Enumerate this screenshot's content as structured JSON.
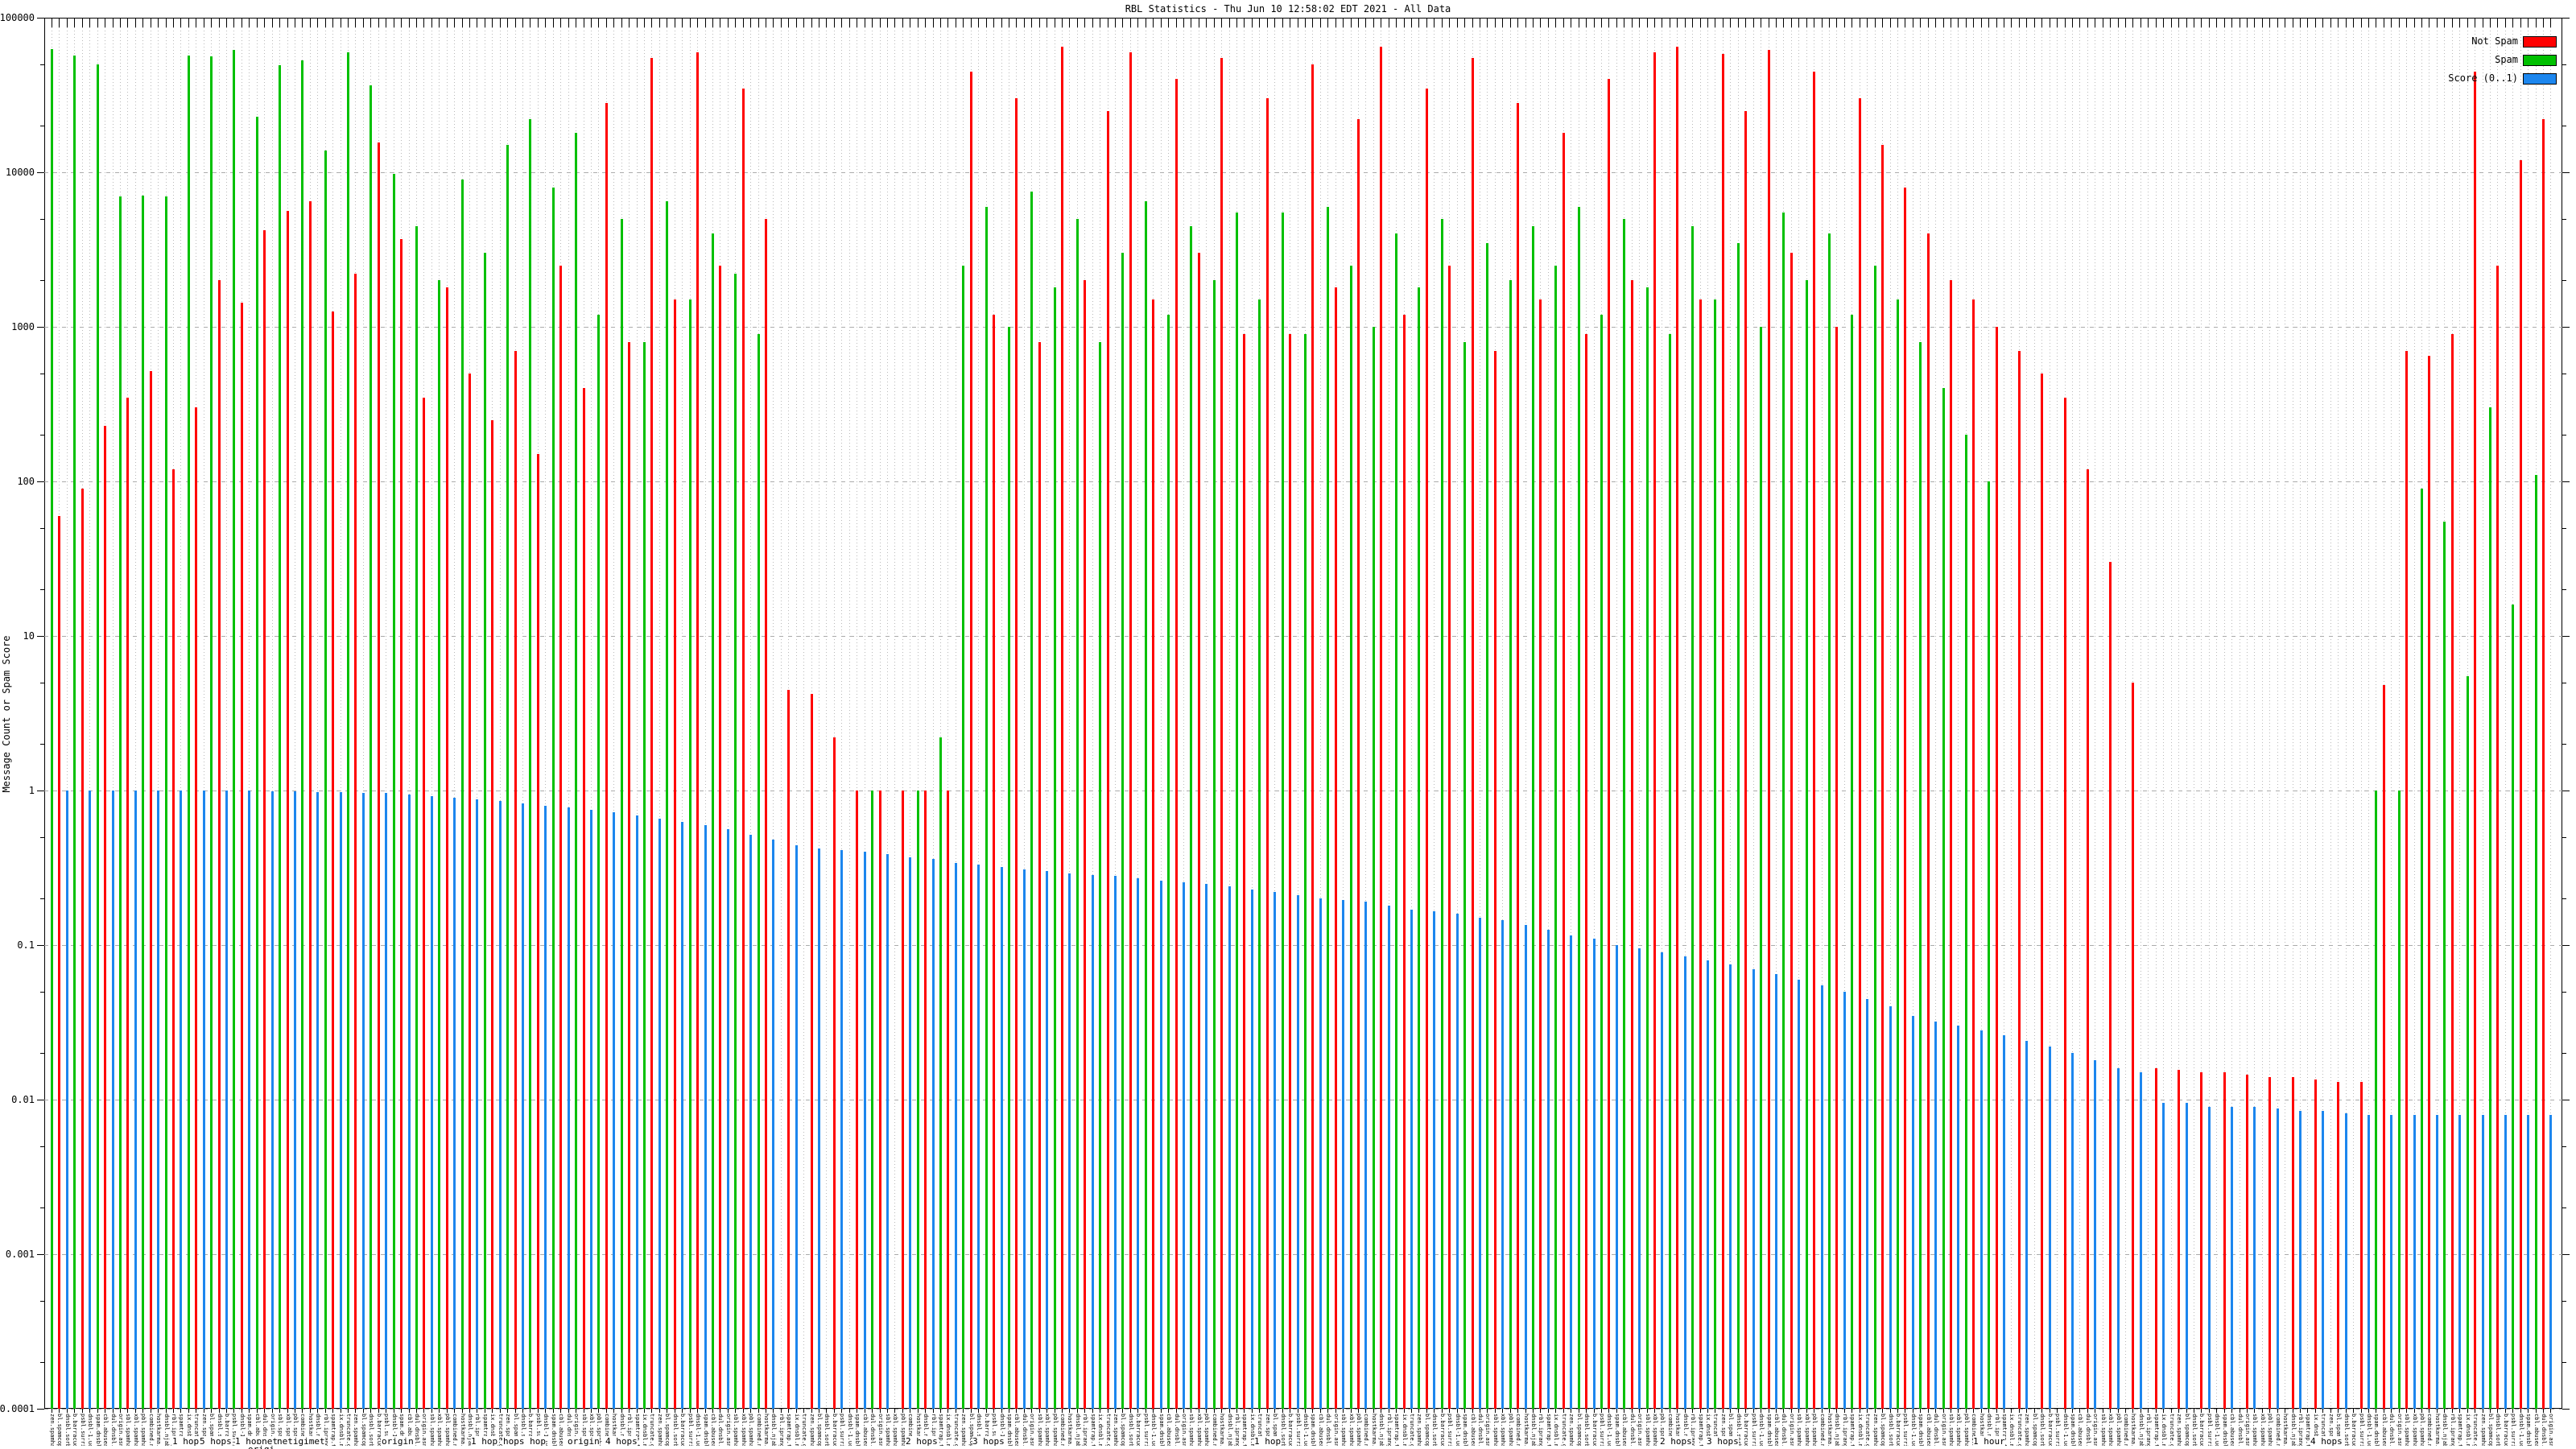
{
  "title": "RBL Statistics - Thu Jun 10 12:58:02 EDT 2021 - All Data",
  "y_axis": {
    "label": "Message Count or Spam Score",
    "tick_labels": [
      "100000",
      "10000",
      "1000",
      "100",
      "10",
      "1",
      "0.1",
      "0.01",
      "0.001",
      "0.0001"
    ],
    "tick_values": [
      100000,
      10000,
      1000,
      100,
      10,
      1,
      0.1,
      0.01,
      0.001,
      0.0001
    ]
  },
  "legend": {
    "items": [
      {
        "label": "Not Spam",
        "color": "#ff0000"
      },
      {
        "label": "Spam",
        "color": "#00c000"
      },
      {
        "label": "Score (0..1)",
        "color": "#1c86ee"
      }
    ]
  },
  "colors": {
    "not_spam": "#ff0000",
    "spam": "#00c000",
    "score": "#1c86ee",
    "grid_dotted": "#b9b9b9",
    "grid_dashed": "#ababab",
    "axis": "#000000"
  },
  "chart_data": {
    "type": "bar",
    "scale": "log",
    "ylim": [
      0.0001,
      100000
    ],
    "grid": true,
    "legend_position": "top-right-inside",
    "n_groups": 110,
    "categories_note": "~110 RBL entries; rotated x labels overlap and are illegible",
    "series": [
      {
        "name": "Spam",
        "color": "#00c000",
        "values": [
          63000,
          57000,
          50000,
          7000,
          7100,
          7000,
          57000,
          56000,
          62000,
          23000,
          49000,
          53000,
          13800,
          60000,
          36500,
          9800,
          4500,
          2000,
          9000,
          3000,
          15000,
          22000,
          8000,
          18000,
          1200,
          5000,
          800,
          6500,
          1500,
          4000,
          2200,
          900,
          0,
          0,
          0,
          0,
          1.0,
          0,
          1.0,
          2.2,
          2500,
          6000,
          1000,
          7500,
          1800,
          5000,
          800,
          3000,
          6500,
          1200,
          4500,
          2000,
          5500,
          1500,
          5500,
          900,
          6000,
          2500,
          1000,
          4000,
          1800,
          5000,
          800,
          3500,
          2000,
          4500,
          2500,
          6000,
          1200,
          5000,
          1800,
          900,
          4500,
          1500,
          3500,
          1000,
          5500,
          2000,
          4000,
          1200,
          2500,
          1500,
          800,
          400,
          200,
          100,
          0,
          0,
          0,
          0,
          0,
          0,
          0,
          0,
          0,
          0,
          0,
          0,
          0,
          0,
          0,
          0,
          1.0,
          1.0,
          90,
          55,
          5.5,
          300,
          16,
          110
        ]
      },
      {
        "name": "Not Spam",
        "color": "#ff0000",
        "values": [
          60,
          90,
          230,
          350,
          520,
          120,
          300,
          2000,
          1430,
          4200,
          5600,
          6500,
          1250,
          2200,
          15500,
          3700,
          350,
          1800,
          500,
          250,
          700,
          150,
          2500,
          400,
          28000,
          800,
          55000,
          1500,
          60000,
          2500,
          35000,
          5000,
          4.5,
          4.2,
          2.2,
          1.0,
          1.0,
          1.0,
          1.0,
          1.0,
          45000,
          1200,
          30000,
          800,
          65000,
          2000,
          25000,
          60000,
          1500,
          40000,
          3000,
          55000,
          900,
          30000,
          900,
          50000,
          1800,
          22000,
          65000,
          1200,
          35000,
          2500,
          55000,
          700,
          28000,
          1500,
          18000,
          900,
          40000,
          2000,
          60000,
          65000,
          1500,
          58000,
          25000,
          62000,
          3000,
          45000,
          1000,
          30000,
          15000,
          8000,
          4000,
          2000,
          1500,
          1000,
          700,
          500,
          350,
          120,
          30,
          5,
          0.016,
          0.0155,
          0.015,
          0.015,
          0.0145,
          0.014,
          0.014,
          0.0135,
          0.013,
          0.013,
          4.8,
          700,
          650,
          900,
          45000,
          2500,
          12000,
          22000
        ]
      },
      {
        "name": "Score (0..1)",
        "color": "#1c86ee",
        "values": [
          1,
          1,
          1,
          1,
          1,
          1,
          1,
          1,
          1,
          0.99,
          0.99,
          0.98,
          0.98,
          0.97,
          0.96,
          0.94,
          0.92,
          0.9,
          0.88,
          0.86,
          0.83,
          0.8,
          0.78,
          0.75,
          0.72,
          0.69,
          0.66,
          0.63,
          0.6,
          0.56,
          0.52,
          0.48,
          0.44,
          0.42,
          0.41,
          0.4,
          0.39,
          0.37,
          0.36,
          0.34,
          0.33,
          0.32,
          0.31,
          0.3,
          0.29,
          0.285,
          0.28,
          0.27,
          0.26,
          0.255,
          0.25,
          0.24,
          0.23,
          0.22,
          0.21,
          0.2,
          0.195,
          0.19,
          0.18,
          0.17,
          0.165,
          0.16,
          0.15,
          0.145,
          0.135,
          0.125,
          0.115,
          0.11,
          0.1,
          0.095,
          0.09,
          0.085,
          0.08,
          0.075,
          0.07,
          0.065,
          0.06,
          0.055,
          0.05,
          0.045,
          0.04,
          0.035,
          0.032,
          0.03,
          0.028,
          0.026,
          0.024,
          0.022,
          0.02,
          0.018,
          0.016,
          0.015,
          0.0095,
          0.0095,
          0.009,
          0.009,
          0.009,
          0.0088,
          0.0085,
          0.0085,
          0.0082,
          0.008,
          0.008,
          0.008,
          0.008,
          0.008,
          0.008,
          0.008,
          0.008,
          0.008
        ]
      }
    ]
  },
  "x_axis": {
    "readable_fragments": [
      {
        "text": "1 hop",
        "x": 214,
        "y": 1784
      },
      {
        "text": "5 hops",
        "x": 248,
        "y": 1784
      },
      {
        "text": "1 hopnet",
        "x": 292,
        "y": 1784
      },
      {
        "text": "origi",
        "x": 308,
        "y": 1794
      },
      {
        "text": "netigimet",
        "x": 344,
        "y": 1784
      },
      {
        "text": "origin",
        "x": 474,
        "y": 1784
      },
      {
        "text": "1 hop",
        "x": 585,
        "y": 1784
      },
      {
        "text": "hops hop",
        "x": 625,
        "y": 1784
      },
      {
        "text": "origin",
        "x": 705,
        "y": 1784
      },
      {
        "text": "4 hops",
        "x": 752,
        "y": 1784
      },
      {
        "text": "2 hops",
        "x": 1125,
        "y": 1784
      },
      {
        "text": "3 hops",
        "x": 1208,
        "y": 1784
      },
      {
        "text": "1 hop",
        "x": 1558,
        "y": 1784
      },
      {
        "text": "2 hops",
        "x": 2062,
        "y": 1784
      },
      {
        "text": "3 hops",
        "x": 2120,
        "y": 1784
      },
      {
        "text": "1 hour",
        "x": 2451,
        "y": 1784
      },
      {
        "text": "4 hops",
        "x": 2870,
        "y": 1784
      }
    ],
    "label_pool": [
      "zen.spamhaus.org 1 hop",
      "bl.spamcop.net 1 hop",
      "dnsbl.sorbs.net origin",
      "b.barracudacentral.org",
      "psbl.surriel.com 2 hops",
      "dnsbl-1.uceprotect.net",
      "spam.dnsbl.sorbs.net",
      "cbl.abuseat.org 1 hop",
      "dul.dnsbl.sorbs.net",
      "origin.asn.cymru.com",
      "sbl.spamhaus.org 5 hops",
      "xbl.spamhaus.org origin",
      "pbl.spamhaus.org 1 hopnet",
      "combined.njabl.org",
      "hostkarma.junkemail 4 hops",
      "dnsbl.njabl.org 3 hops",
      "rbl.iprange.net 4 hops",
      "spamtrap.trblspam.com",
      "ix.dnsbl.manitu.net",
      "truncate.gbudb.net origin"
    ]
  }
}
